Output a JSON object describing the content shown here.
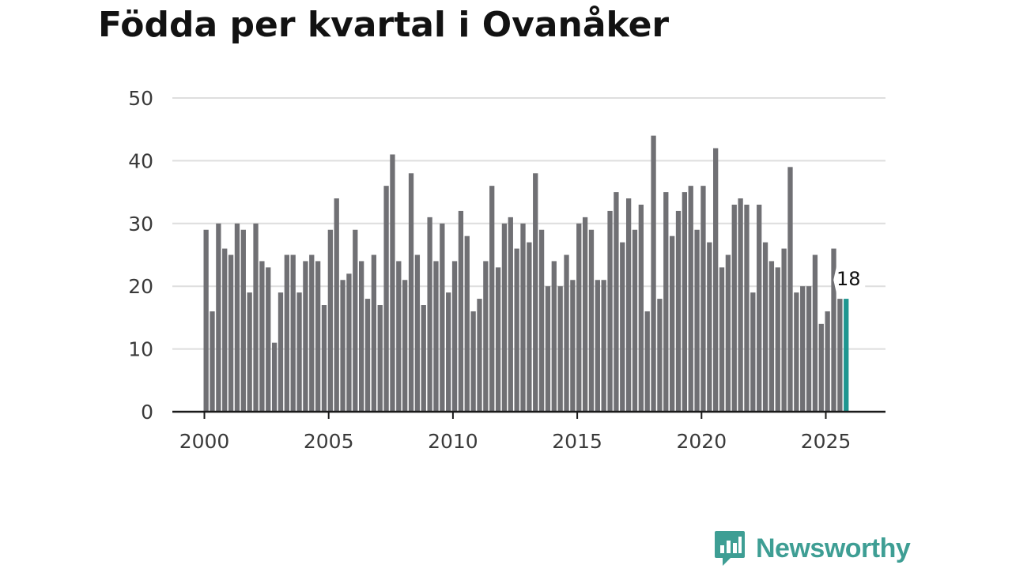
{
  "chart_data": {
    "type": "bar",
    "title": "Födda per kvartal i Ovanåker",
    "xlabel": "",
    "ylabel": "",
    "ylim": [
      0,
      50
    ],
    "yticks": [
      0,
      10,
      20,
      30,
      40,
      50
    ],
    "xticks": [
      2000,
      2005,
      2010,
      2015,
      2020,
      2025
    ],
    "x_start": 2000,
    "periods_per_year": 4,
    "values": [
      29,
      16,
      30,
      26,
      25,
      30,
      29,
      19,
      30,
      24,
      23,
      11,
      19,
      25,
      25,
      19,
      24,
      25,
      24,
      17,
      29,
      34,
      21,
      22,
      29,
      24,
      18,
      25,
      17,
      36,
      41,
      24,
      21,
      38,
      25,
      17,
      31,
      24,
      30,
      19,
      24,
      32,
      28,
      16,
      18,
      24,
      36,
      23,
      30,
      31,
      26,
      30,
      27,
      38,
      29,
      20,
      24,
      20,
      25,
      21,
      30,
      31,
      29,
      21,
      21,
      32,
      35,
      27,
      34,
      29,
      33,
      16,
      44,
      18,
      35,
      28,
      32,
      35,
      36,
      29,
      36,
      27,
      42,
      23,
      25,
      33,
      34,
      33,
      19,
      33,
      27,
      24,
      23,
      26,
      39,
      19,
      20,
      20,
      25,
      14,
      16,
      26,
      18,
      18
    ],
    "highlight_index": 103,
    "highlight_label": "18",
    "colors": {
      "bar": "#707074",
      "highlight": "#1f9690",
      "grid": "#dedede",
      "axis": "#1a1a1a"
    }
  },
  "brand": {
    "name": "Newsworthy"
  },
  "colors": {
    "brand": "#3e9e94"
  }
}
